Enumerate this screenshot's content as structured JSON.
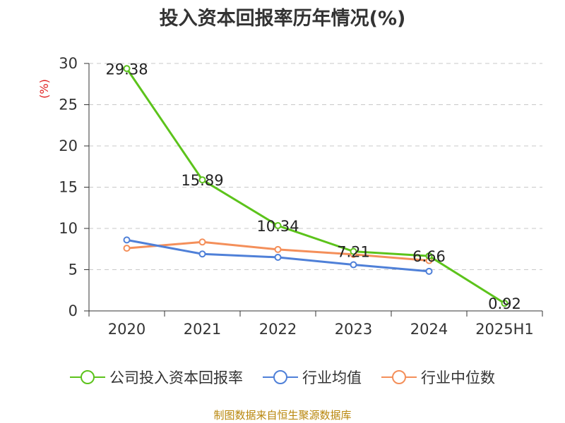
{
  "chart_data": {
    "type": "line",
    "title": "投入资本回报率历年情况(%)",
    "ylabel": "(%)",
    "categories": [
      "2020",
      "2021",
      "2022",
      "2023",
      "2024",
      "2025H1"
    ],
    "ylim": [
      0,
      30
    ],
    "yticks": [
      0,
      5,
      10,
      15,
      20,
      25,
      30
    ],
    "grid": true,
    "legend_position": "bottom",
    "series": [
      {
        "name": "公司投入资本回报率",
        "color": "#5cc31b",
        "values": [
          29.38,
          15.89,
          10.34,
          7.21,
          6.66,
          0.92
        ],
        "labels": [
          "29.38",
          "15.89",
          "10.34",
          "7.21",
          "6.66",
          "0.92"
        ]
      },
      {
        "name": "行业均值",
        "color": "#4f80d8",
        "values": [
          8.6,
          6.9,
          6.5,
          5.6,
          4.8,
          null
        ]
      },
      {
        "name": "行业中位数",
        "color": "#f48f5a",
        "values": [
          7.6,
          8.35,
          7.45,
          6.85,
          6.1,
          null
        ]
      }
    ]
  },
  "footer": {
    "source": "制图数据来自恒生聚源数据库"
  }
}
